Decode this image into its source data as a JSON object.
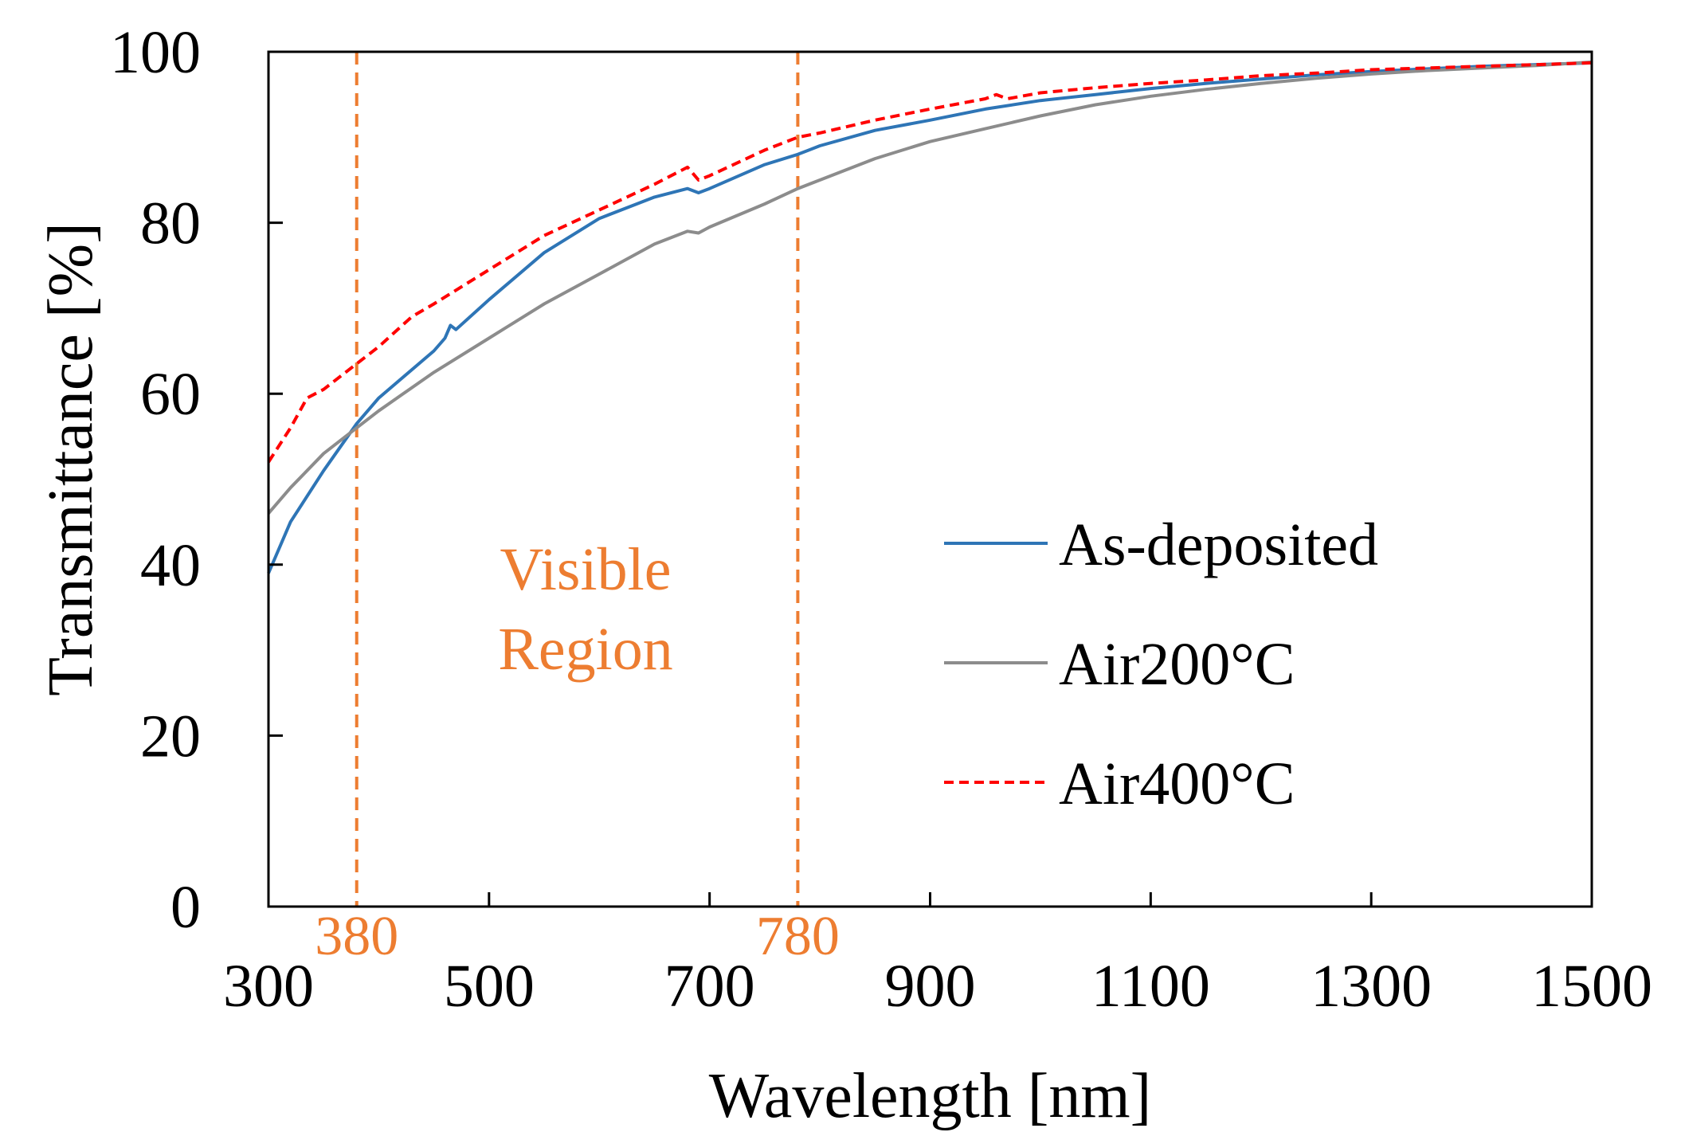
{
  "chart_data": {
    "type": "line",
    "title": "",
    "xlabel": "Wavelength [nm]",
    "ylabel": "Transmittance [%]",
    "xlim": [
      300,
      1500
    ],
    "ylim": [
      0,
      100
    ],
    "xticks": [
      300,
      500,
      700,
      900,
      1100,
      1300,
      1500
    ],
    "yticks": [
      0,
      20,
      40,
      60,
      80,
      100
    ],
    "grid": false,
    "legend_position": "right",
    "reference_lines": [
      {
        "x": 380,
        "label": "380",
        "color": "#ED7D31"
      },
      {
        "x": 780,
        "label": "780",
        "color": "#ED7D31"
      }
    ],
    "annotation": {
      "lines": [
        "Visible",
        "Region"
      ],
      "color": "#ED7D31"
    },
    "series": [
      {
        "name": "As-deposited",
        "color": "#2E75B6",
        "dash": "solid",
        "x": [
          300,
          320,
          350,
          380,
          400,
          450,
          460,
          465,
          470,
          500,
          550,
          600,
          650,
          680,
          690,
          700,
          750,
          780,
          800,
          850,
          900,
          950,
          1000,
          1050,
          1100,
          1150,
          1200,
          1250,
          1300,
          1350,
          1400,
          1450,
          1500
        ],
        "y": [
          39,
          45,
          51,
          56.5,
          59.5,
          65,
          66.5,
          68,
          67.5,
          71,
          76.5,
          80.5,
          83,
          84,
          83.5,
          84,
          86.8,
          88,
          89,
          90.8,
          92,
          93.3,
          94.3,
          95,
          95.7,
          96.3,
          96.8,
          97.3,
          97.7,
          98,
          98.3,
          98.5,
          98.7
        ]
      },
      {
        "name": "Air200°C",
        "color": "#8C8C8C",
        "dash": "solid",
        "x": [
          300,
          320,
          350,
          380,
          400,
          450,
          500,
          550,
          600,
          650,
          680,
          690,
          700,
          750,
          780,
          800,
          850,
          900,
          950,
          1000,
          1050,
          1100,
          1150,
          1200,
          1250,
          1300,
          1350,
          1400,
          1450,
          1500
        ],
        "y": [
          46,
          49,
          53,
          56,
          58,
          62.5,
          66.5,
          70.5,
          74,
          77.5,
          79,
          78.8,
          79.5,
          82.2,
          84,
          85,
          87.5,
          89.5,
          91,
          92.5,
          93.8,
          94.8,
          95.6,
          96.3,
          96.9,
          97.4,
          97.8,
          98.1,
          98.4,
          98.8
        ]
      },
      {
        "name": "Air400°C",
        "color": "#FF0000",
        "dash": "dashed",
        "x": [
          300,
          320,
          335,
          350,
          380,
          400,
          430,
          450,
          500,
          550,
          600,
          650,
          680,
          690,
          700,
          750,
          780,
          800,
          850,
          900,
          950,
          960,
          970,
          1000,
          1050,
          1100,
          1150,
          1200,
          1250,
          1300,
          1350,
          1400,
          1450,
          1500
        ],
        "y": [
          52,
          56,
          59.5,
          60.5,
          63.5,
          65.5,
          69,
          70.5,
          74.5,
          78.5,
          81.5,
          84.5,
          86.5,
          85,
          85.5,
          88.5,
          90,
          90.5,
          92,
          93.3,
          94.5,
          95,
          94.5,
          95.2,
          95.8,
          96.3,
          96.7,
          97.2,
          97.5,
          97.9,
          98.1,
          98.3,
          98.5,
          98.7
        ]
      }
    ]
  }
}
